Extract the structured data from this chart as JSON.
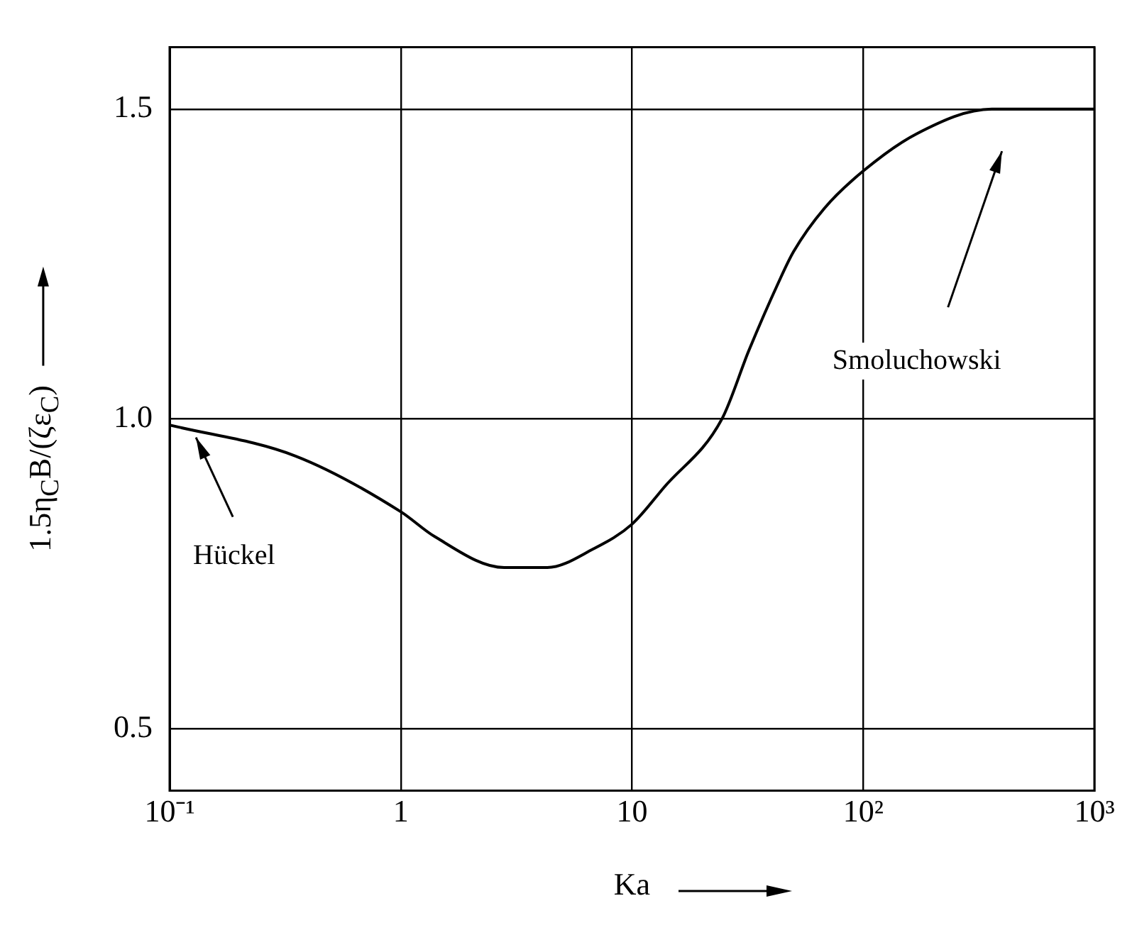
{
  "chart_data": {
    "type": "line",
    "xlabel": "Ka",
    "ylabel": "1.5η$_{C}$B/(ζε$_{C}$)",
    "log": "x",
    "grid": true,
    "legend": false,
    "marker": "none",
    "line_style": "solid",
    "xlim": [
      0.1,
      1000
    ],
    "xticks": [
      {
        "value": 0.1,
        "label": "10⁻¹"
      },
      1,
      10,
      {
        "value": 100,
        "label": "10²"
      },
      {
        "value": 1000,
        "label": "10³"
      }
    ],
    "ylim": [
      0.4,
      1.6
    ],
    "yticks": [
      0.5,
      {
        "value": 1,
        "label": "1.0"
      },
      1.5
    ],
    "series": [
      {
        "color": "#000000",
        "x": [
          0.1,
          0.35,
          1,
          1.4,
          2.8,
          4.3,
          6.8,
          10,
          13.8,
          24.5,
          32,
          43,
          50,
          68,
          100,
          170,
          360,
          1000
        ],
        "values": [
          0.99,
          0.94,
          0.85,
          0.81,
          0.76,
          0.76,
          0.79,
          0.83,
          0.89,
          1.0,
          1.11,
          1.22,
          1.27,
          1.34,
          1.4,
          1.46,
          1.5,
          1.5
        ]
      }
    ],
    "annotations": [
      {
        "text": "Hückel",
        "x": 0.13,
        "y": 0.97
      },
      "Smoluchowski"
    ]
  }
}
